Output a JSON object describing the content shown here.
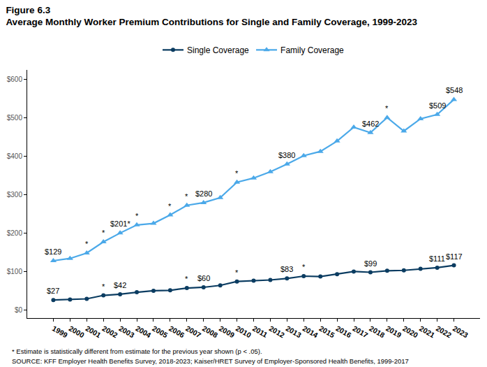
{
  "chart_data": {
    "type": "line",
    "title": "Figure 6.3",
    "subtitle": "Average Monthly Worker Premium Contributions for Single and Family Coverage, 1999-2023",
    "notes": [
      "* Estimate is statistically different from estimate for the previous year shown (p < .05).",
      "SOURCE: KFF Employer Health Benefits Survey, 2018-2023; Kaiser/HRET Survey of Employer-Sponsored Health Benefits, 1999-2017"
    ],
    "categories": [
      "1999",
      "2000",
      "2001",
      "2002",
      "2003",
      "2004",
      "2005",
      "2006",
      "2007",
      "2008",
      "2009",
      "2010",
      "2011",
      "2012",
      "2013",
      "2014",
      "2015",
      "2016",
      "2017",
      "2018",
      "2019",
      "2020",
      "2021",
      "2022",
      "2023"
    ],
    "series": [
      {
        "name": "Single Coverage",
        "color": "#0b3c61",
        "marker": "circle",
        "line_style": "solid",
        "values": [
          27,
          28,
          30,
          39,
          42,
          47,
          51,
          52,
          58,
          60,
          65,
          75,
          77,
          79,
          83,
          89,
          88,
          94,
          101,
          99,
          103,
          104,
          108,
          111,
          117
        ],
        "value_labels": [
          "$27",
          null,
          null,
          null,
          "$42",
          null,
          null,
          null,
          null,
          "$60",
          null,
          null,
          null,
          null,
          "$83",
          null,
          null,
          null,
          null,
          "$99",
          null,
          null,
          null,
          "$111",
          "$117"
        ]
      },
      {
        "name": "Family Coverage",
        "color": "#4ba9e9",
        "marker": "triangle-up",
        "line_style": "solid",
        "values": [
          129,
          135,
          149,
          178,
          201,
          222,
          226,
          248,
          273,
          280,
          293,
          333,
          344,
          360,
          380,
          402,
          413,
          440,
          476,
          462,
          501,
          466,
          498,
          509,
          548
        ],
        "value_labels": [
          "$129",
          null,
          null,
          null,
          "$201*",
          null,
          null,
          null,
          null,
          "$280",
          null,
          null,
          null,
          null,
          "$380",
          null,
          null,
          null,
          null,
          "$462",
          null,
          null,
          null,
          "$509",
          "$548"
        ]
      }
    ],
    "annotations": [
      {
        "category": "2001",
        "series": "Family Coverage",
        "text": "*"
      },
      {
        "category": "2002",
        "series": "Family Coverage",
        "text": "*"
      },
      {
        "category": "2004",
        "series": "Family Coverage",
        "text": "*"
      },
      {
        "category": "2006",
        "series": "Family Coverage",
        "text": "*"
      },
      {
        "category": "2007",
        "series": "Family Coverage",
        "text": "*"
      },
      {
        "category": "2010",
        "series": "Family Coverage",
        "text": "*"
      },
      {
        "category": "2019",
        "series": "Family Coverage",
        "text": "*"
      },
      {
        "category": "2002",
        "series": "Single Coverage",
        "text": "*"
      },
      {
        "category": "2007",
        "series": "Single Coverage",
        "text": "*"
      },
      {
        "category": "2010",
        "series": "Single Coverage",
        "text": "*"
      },
      {
        "category": "2014",
        "series": "Single Coverage",
        "text": "*"
      }
    ],
    "ylim": [
      -20,
      625
    ],
    "yticks": [
      {
        "value": 0,
        "label": "$0"
      },
      {
        "value": 100,
        "label": "$100"
      },
      {
        "value": 200,
        "label": "$200"
      },
      {
        "value": 300,
        "label": "$300"
      },
      {
        "value": 400,
        "label": "$400"
      },
      {
        "value": 500,
        "label": "$500"
      },
      {
        "value": 600,
        "label": "$600"
      }
    ],
    "grid": false,
    "legend": "top",
    "data_labels": true
  }
}
